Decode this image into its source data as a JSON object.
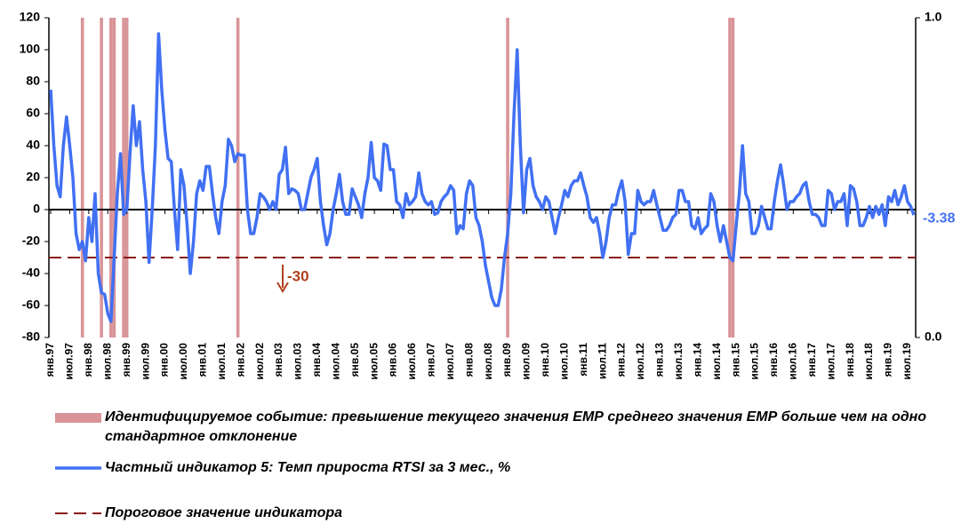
{
  "chart_data": {
    "type": "line",
    "categories": [
      "янв.97",
      null,
      null,
      null,
      null,
      null,
      "июл.97",
      null,
      null,
      null,
      null,
      null,
      "янв.98",
      null,
      null,
      null,
      null,
      null,
      "июл.98",
      null,
      null,
      null,
      null,
      null,
      "янв.99",
      null,
      null,
      null,
      null,
      null,
      "июл.99",
      null,
      null,
      null,
      null,
      null,
      "янв.00",
      null,
      null,
      null,
      null,
      null,
      "июл.00",
      null,
      null,
      null,
      null,
      null,
      "янв.01",
      null,
      null,
      null,
      null,
      null,
      "июл.01",
      null,
      null,
      null,
      null,
      null,
      "янв.02",
      null,
      null,
      null,
      null,
      null,
      "июл.02",
      null,
      null,
      null,
      null,
      null,
      "янв.03",
      null,
      null,
      null,
      null,
      null,
      "июл.03",
      null,
      null,
      null,
      null,
      null,
      "янв.04",
      null,
      null,
      null,
      null,
      null,
      "июл.04",
      null,
      null,
      null,
      null,
      null,
      "янв.05",
      null,
      null,
      null,
      null,
      null,
      "июл.05",
      null,
      null,
      null,
      null,
      null,
      "янв.06",
      null,
      null,
      null,
      null,
      null,
      "июл.06",
      null,
      null,
      null,
      null,
      null,
      "янв.07",
      null,
      null,
      null,
      null,
      null,
      "июл.07",
      null,
      null,
      null,
      null,
      null,
      "янв.08",
      null,
      null,
      null,
      null,
      null,
      "июл.08",
      null,
      null,
      null,
      null,
      null,
      "янв.09",
      null,
      null,
      null,
      null,
      null,
      "июл.09",
      null,
      null,
      null,
      null,
      null,
      "янв.10",
      null,
      null,
      null,
      null,
      null,
      "июл.10",
      null,
      null,
      null,
      null,
      null,
      "янв.11",
      null,
      null,
      null,
      null,
      null,
      "июл.11",
      null,
      null,
      null,
      null,
      null,
      "янв.12",
      null,
      null,
      null,
      null,
      null,
      "июл.12",
      null,
      null,
      null,
      null,
      null,
      "янв.13",
      null,
      null,
      null,
      null,
      null,
      "июл.13",
      null,
      null,
      null,
      null,
      null,
      "янв.14",
      null,
      null,
      null,
      null,
      null,
      "июл.14",
      null,
      null,
      null,
      null,
      null,
      "янв.15",
      null,
      null,
      null,
      null,
      null,
      "июл.15",
      null,
      null,
      null,
      null,
      null,
      "янв.16",
      null,
      null,
      null,
      null,
      null,
      "июл.16",
      null,
      null,
      null,
      null,
      null,
      "янв.17",
      null,
      null,
      null,
      null,
      null,
      "июл.17",
      null,
      null,
      null,
      null,
      null,
      "янв.18",
      null,
      null,
      null,
      null,
      null,
      "июл.18",
      null,
      null,
      null,
      null,
      null,
      "янв.19",
      null,
      null,
      null,
      null,
      null,
      "июл.19",
      null,
      null
    ],
    "series": [
      {
        "name": "Частный индикатор 5: Темп прироста RTSI за 3 мес., %",
        "color": "#4170f2",
        "axis": "y",
        "values": [
          75,
          40,
          15,
          8,
          40,
          58,
          40,
          20,
          -15,
          -25,
          -20,
          -32,
          -5,
          -20,
          10,
          -40,
          -52,
          -53,
          -65,
          -70,
          -30,
          10,
          35,
          -3,
          0,
          35,
          65,
          40,
          55,
          25,
          5,
          -33,
          0,
          40,
          110,
          75,
          50,
          32,
          30,
          0,
          -25,
          25,
          15,
          -10,
          -40,
          -20,
          10,
          18,
          12,
          27,
          27,
          10,
          -5,
          -15,
          5,
          15,
          44,
          40,
          30,
          35,
          34,
          34,
          0,
          -15,
          -15,
          -5,
          10,
          8,
          5,
          0,
          5,
          0,
          22,
          25,
          39,
          10,
          13,
          12,
          10,
          0,
          0,
          10,
          20,
          25,
          32,
          5,
          -10,
          -22,
          -15,
          0,
          10,
          22,
          5,
          -3,
          -3,
          13,
          8,
          3,
          -5,
          10,
          20,
          42,
          20,
          18,
          12,
          41,
          40,
          25,
          25,
          5,
          3,
          -5,
          10,
          3,
          5,
          8,
          23,
          10,
          5,
          3,
          5,
          -3,
          -2,
          5,
          8,
          10,
          15,
          12,
          -15,
          -10,
          -12,
          10,
          18,
          15,
          -5,
          -10,
          -20,
          -35,
          -45,
          -55,
          -60,
          -60,
          -50,
          -30,
          -15,
          10,
          60,
          100,
          40,
          -2,
          25,
          32,
          15,
          8,
          5,
          0,
          8,
          5,
          -5,
          -15,
          -5,
          3,
          12,
          8,
          15,
          18,
          18,
          23,
          15,
          8,
          -5,
          -8,
          -5,
          -15,
          -30,
          -20,
          -5,
          3,
          3,
          12,
          18,
          5,
          -28,
          -15,
          -15,
          12,
          5,
          3,
          5,
          5,
          12,
          3,
          -5,
          -13,
          -13,
          -10,
          -5,
          -3,
          12,
          12,
          5,
          5,
          -10,
          -12,
          -5,
          -15,
          -12,
          -10,
          10,
          5,
          -10,
          -20,
          -10,
          -20,
          -30,
          -32,
          -10,
          10,
          40,
          10,
          5,
          -15,
          -15,
          -10,
          2,
          -5,
          -12,
          -12,
          5,
          18,
          28,
          15,
          0,
          5,
          5,
          8,
          10,
          15,
          17,
          5,
          -3,
          -3,
          -5,
          -10,
          -10,
          12,
          10,
          0,
          5,
          5,
          10,
          -10,
          15,
          13,
          5,
          -10,
          -10,
          -5,
          2,
          -5,
          2,
          -3,
          3,
          -10,
          8,
          5,
          12,
          3,
          8,
          15,
          5,
          2,
          -3.38
        ]
      },
      {
        "name": "Идентифицируемое событие: превышение текущего значения ЕМР среднего значения ЕМР больше чем на одно стандартное отклонение",
        "color": "#d99498",
        "axis": "y2",
        "type": "bar",
        "values": [
          0,
          0,
          0,
          0,
          0,
          0,
          0,
          0,
          0,
          0,
          1,
          0,
          0,
          0,
          0,
          0,
          1,
          0,
          0,
          1,
          1,
          0,
          0,
          1,
          1,
          0,
          0,
          0,
          0,
          0,
          0,
          0,
          0,
          0,
          0,
          0,
          0,
          0,
          0,
          0,
          0,
          0,
          0,
          0,
          0,
          0,
          0,
          0,
          0,
          0,
          0,
          0,
          0,
          0,
          0,
          0,
          0,
          0,
          0,
          1,
          0,
          0,
          0,
          0,
          0,
          0,
          0,
          0,
          0,
          0,
          0,
          0,
          0,
          0,
          0,
          0,
          0,
          0,
          0,
          0,
          0,
          0,
          0,
          0,
          0,
          0,
          0,
          0,
          0,
          0,
          0,
          0,
          0,
          0,
          0,
          0,
          0,
          0,
          0,
          0,
          0,
          0,
          0,
          0,
          0,
          0,
          0,
          0,
          0,
          0,
          0,
          0,
          0,
          0,
          0,
          0,
          0,
          0,
          0,
          0,
          0,
          0,
          0,
          0,
          0,
          0,
          0,
          0,
          0,
          0,
          0,
          0,
          0,
          0,
          0,
          0,
          0,
          0,
          0,
          0,
          0,
          0,
          0,
          0,
          1,
          0,
          0,
          0,
          0,
          0,
          0,
          0,
          0,
          0,
          0,
          0,
          0,
          0,
          0,
          0,
          0,
          0,
          0,
          0,
          0,
          0,
          0,
          0,
          0,
          0,
          0,
          0,
          0,
          0,
          0,
          0,
          0,
          0,
          0,
          0,
          0,
          0,
          0,
          0,
          0,
          0,
          0,
          0,
          0,
          0,
          0,
          0,
          0,
          0,
          0,
          0,
          0,
          0,
          0,
          0,
          0,
          0,
          0,
          0,
          0,
          0,
          0,
          0,
          0,
          0,
          0,
          0,
          0,
          0,
          1,
          1,
          0,
          0,
          0,
          0,
          0,
          0,
          0,
          0,
          0,
          0,
          0,
          0,
          0,
          0,
          0,
          0,
          0,
          0,
          0,
          0,
          0,
          0,
          0,
          0,
          0,
          0,
          0,
          0,
          0,
          0,
          0,
          0,
          0,
          0,
          0,
          0,
          0,
          0,
          0,
          0,
          0,
          0,
          0,
          0,
          0,
          0,
          0,
          0,
          0,
          0,
          0,
          0,
          0,
          0,
          0,
          0,
          0
        ]
      }
    ],
    "threshold": {
      "name": "Пороговое значение индикатора",
      "value": -30,
      "color": "#8b1a1a"
    },
    "annotation_color": "#b0401c",
    "ylim": [
      -80,
      120
    ],
    "yticks": [
      -80,
      -60,
      -40,
      -20,
      0,
      20,
      40,
      60,
      80,
      100,
      120
    ],
    "y2lim": [
      0,
      1
    ],
    "y2ticks": [
      {
        "value": 0,
        "label": "0.0"
      },
      {
        "value": 1,
        "label": "1.0"
      }
    ]
  }
}
